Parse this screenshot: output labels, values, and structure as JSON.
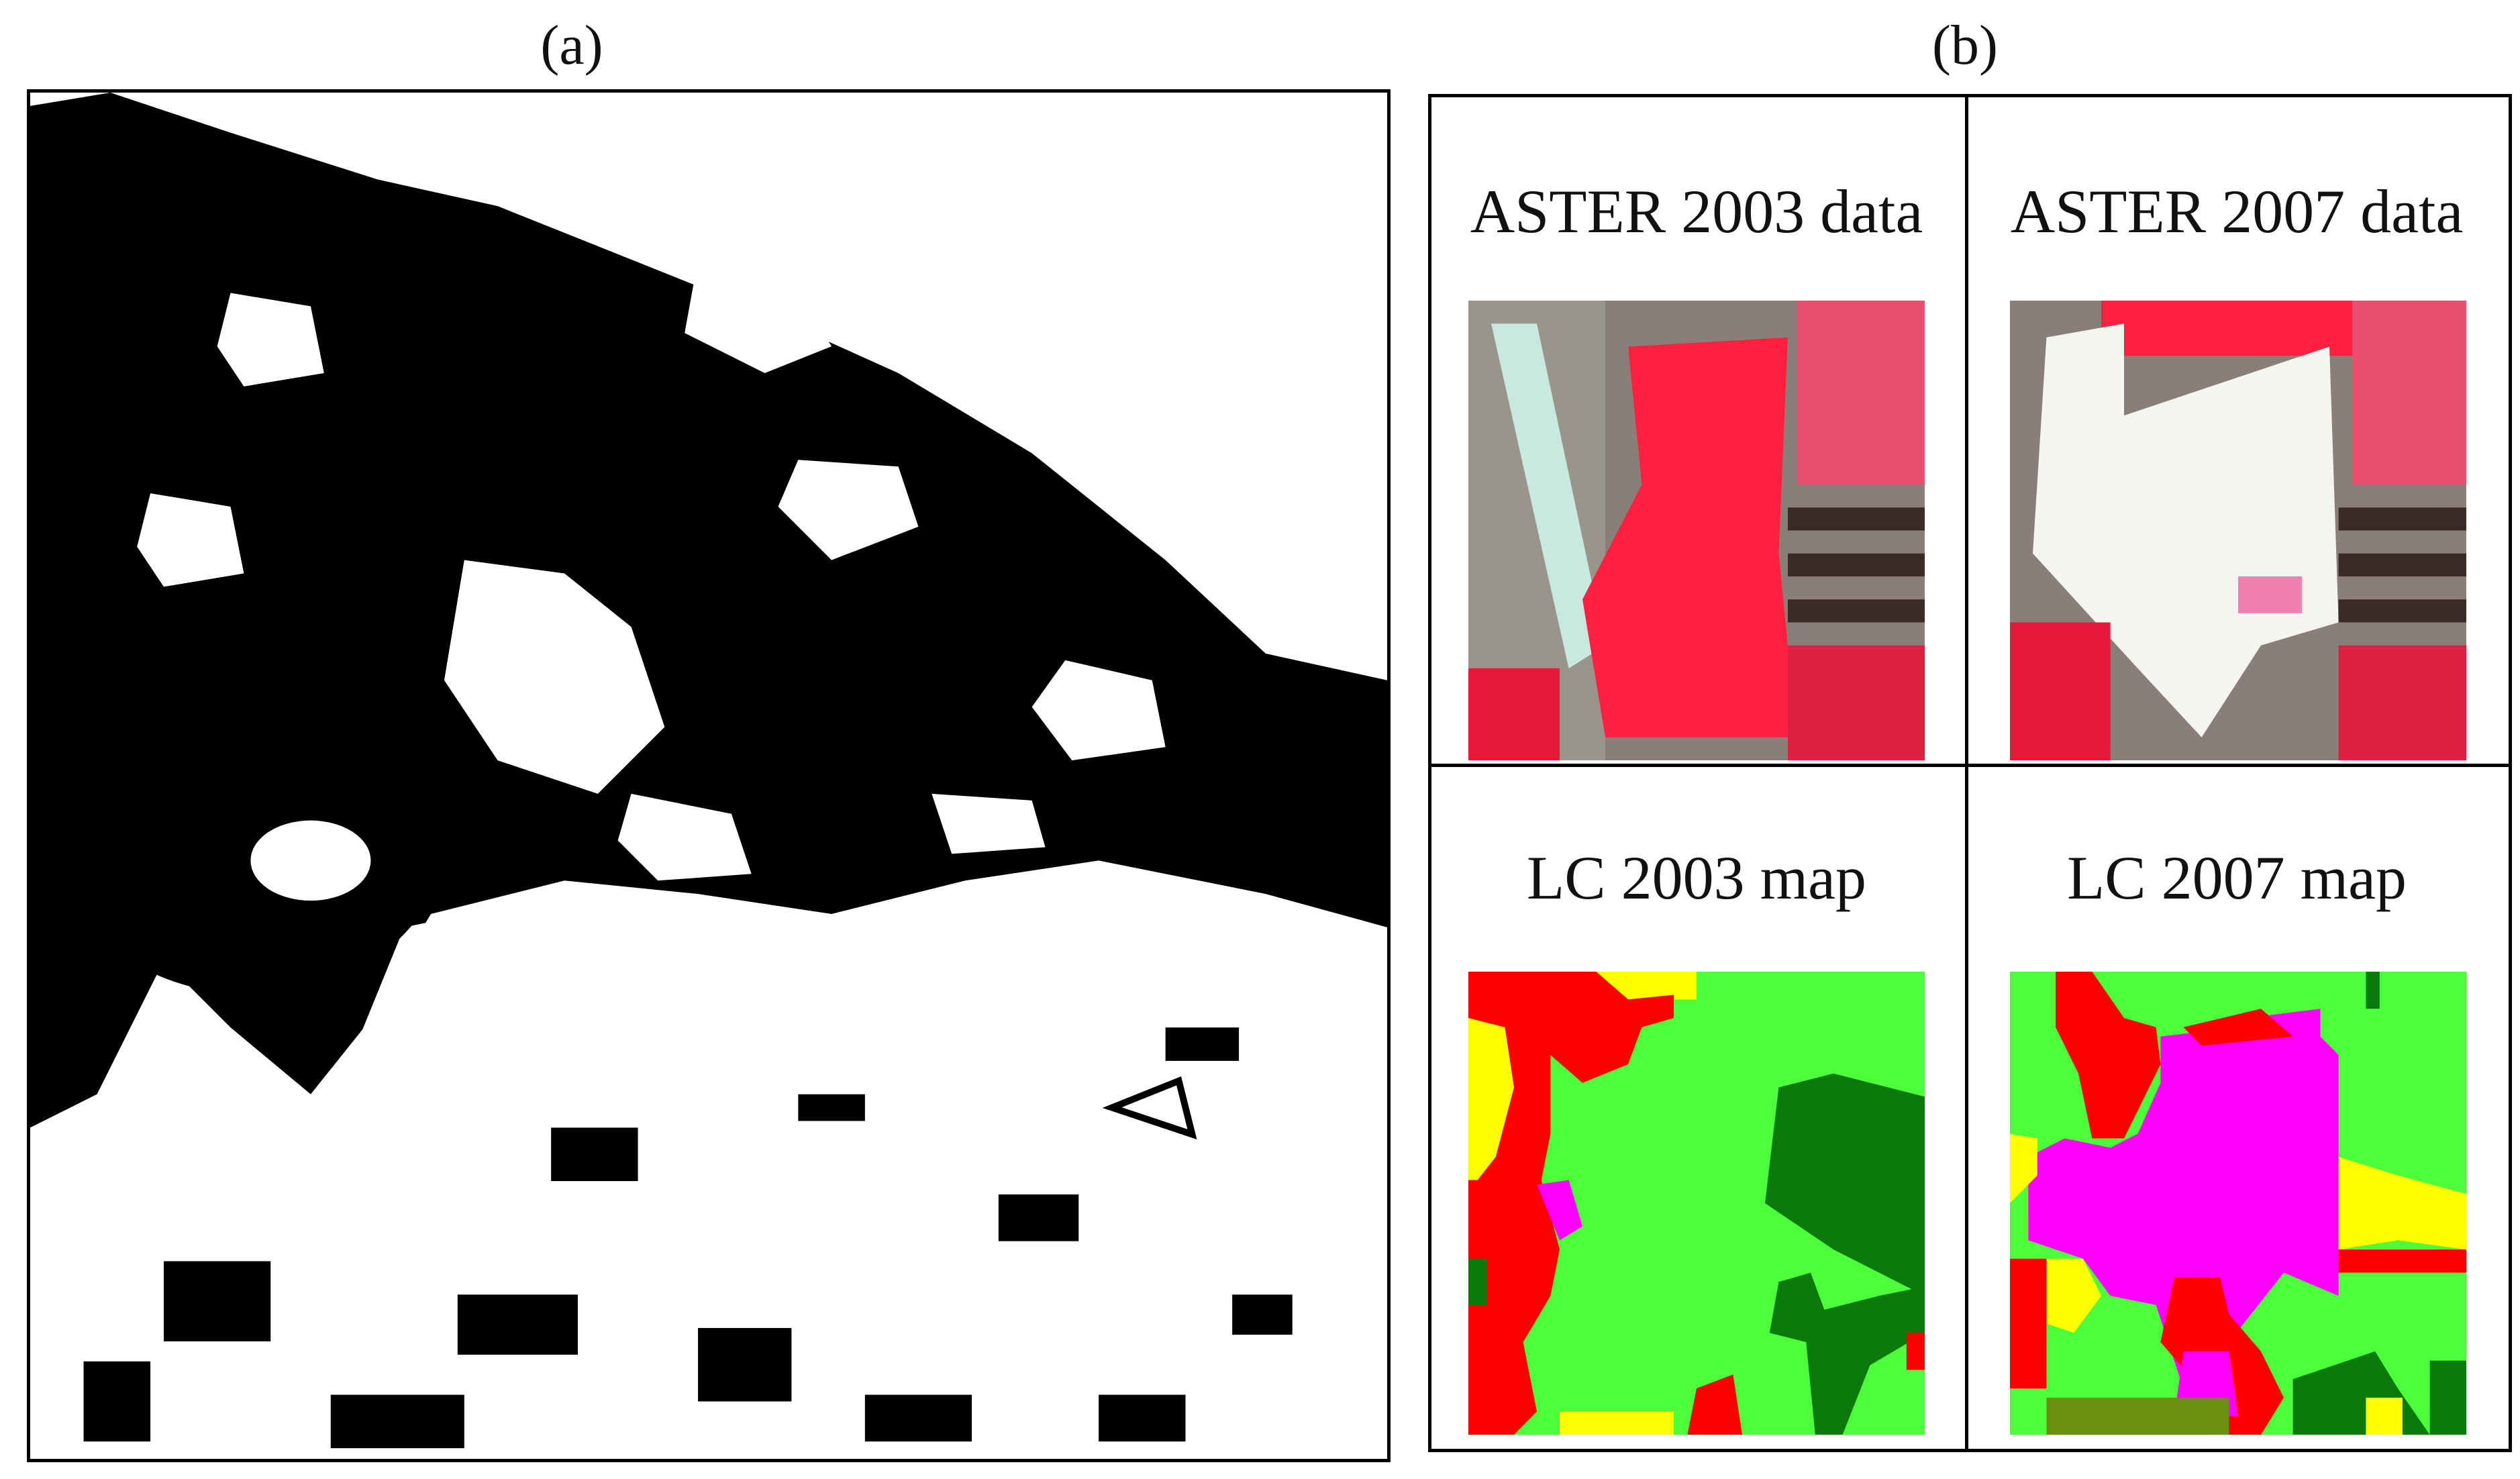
{
  "figure": {
    "panel_a": {
      "label": "(a)"
    },
    "panel_b": {
      "label": "(b)",
      "cells": [
        {
          "title": "ASTER 2003 data"
        },
        {
          "title": "ASTER 2007 data"
        },
        {
          "title": "LC 2003 map"
        },
        {
          "title": "LC 2007 map"
        }
      ]
    }
  },
  "colors": {
    "landcover_light_green": "#4cff3a",
    "landcover_dark_green": "#0b7a0b",
    "landcover_red": "#ff0000",
    "landcover_yellow": "#ffff00",
    "landcover_magenta": "#ff00ff",
    "aster_red": "#ff2040",
    "aster_white": "#f4f4f0"
  }
}
